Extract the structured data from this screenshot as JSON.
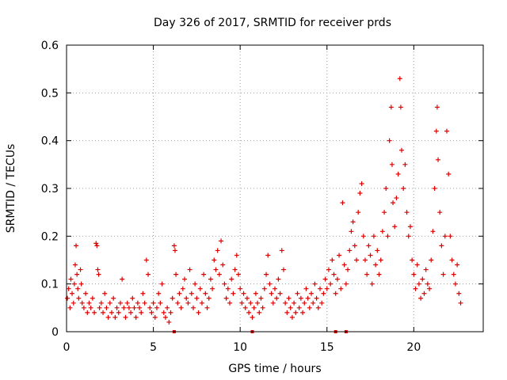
{
  "chart_data": {
    "type": "scatter",
    "title": "Day 326 of 2017, SRMTID for receiver prds",
    "xlabel": "GPS time / hours",
    "ylabel": "SRMTID / TECUs",
    "xlim": [
      0,
      24
    ],
    "ylim": [
      0,
      0.6
    ],
    "xticks": [
      0,
      5,
      10,
      15,
      20
    ],
    "xtick_labels": [
      "0",
      "5",
      "10",
      "15",
      "20"
    ],
    "yticks": [
      0,
      0.1,
      0.2,
      0.3,
      0.4,
      0.5,
      0.6
    ],
    "ytick_labels": [
      "0",
      "0.1",
      "0.2",
      "0.3",
      "0.4",
      "0.5",
      "0.6"
    ],
    "grid": true,
    "marker": "+",
    "color": "#dd0000",
    "series": [
      {
        "name": "SRMTID",
        "points": [
          [
            0.05,
            0.07
          ],
          [
            0.12,
            0.09
          ],
          [
            0.2,
            0.05
          ],
          [
            0.25,
            0.11
          ],
          [
            0.32,
            0.08
          ],
          [
            0.4,
            0.06
          ],
          [
            0.45,
            0.1
          ],
          [
            0.5,
            0.14
          ],
          [
            0.55,
            0.18
          ],
          [
            0.6,
            0.12
          ],
          [
            0.65,
            0.09
          ],
          [
            0.7,
            0.07
          ],
          [
            0.8,
            0.13
          ],
          [
            0.85,
            0.1
          ],
          [
            0.9,
            0.06
          ],
          [
            1.0,
            0.05
          ],
          [
            1.1,
            0.08
          ],
          [
            1.2,
            0.04
          ],
          [
            1.3,
            0.06
          ],
          [
            1.4,
            0.05
          ],
          [
            1.5,
            0.07
          ],
          [
            1.6,
            0.04
          ],
          [
            1.7,
            0.185
          ],
          [
            1.75,
            0.18
          ],
          [
            1.8,
            0.13
          ],
          [
            1.85,
            0.12
          ],
          [
            1.9,
            0.05
          ],
          [
            2.0,
            0.06
          ],
          [
            2.1,
            0.04
          ],
          [
            2.2,
            0.08
          ],
          [
            2.3,
            0.05
          ],
          [
            2.4,
            0.03
          ],
          [
            2.5,
            0.06
          ],
          [
            2.6,
            0.04
          ],
          [
            2.7,
            0.07
          ],
          [
            2.8,
            0.03
          ],
          [
            2.9,
            0.05
          ],
          [
            3.0,
            0.04
          ],
          [
            3.1,
            0.06
          ],
          [
            3.2,
            0.11
          ],
          [
            3.3,
            0.05
          ],
          [
            3.4,
            0.03
          ],
          [
            3.5,
            0.06
          ],
          [
            3.6,
            0.05
          ],
          [
            3.7,
            0.04
          ],
          [
            3.8,
            0.07
          ],
          [
            3.9,
            0.05
          ],
          [
            4.0,
            0.03
          ],
          [
            4.1,
            0.06
          ],
          [
            4.2,
            0.05
          ],
          [
            4.3,
            0.04
          ],
          [
            4.4,
            0.08
          ],
          [
            4.5,
            0.06
          ],
          [
            4.6,
            0.15
          ],
          [
            4.7,
            0.12
          ],
          [
            4.8,
            0.05
          ],
          [
            4.9,
            0.04
          ],
          [
            5.0,
            0.06
          ],
          [
            5.1,
            0.03
          ],
          [
            5.2,
            0.05
          ],
          [
            5.3,
            0.08
          ],
          [
            5.4,
            0.06
          ],
          [
            5.5,
            0.1
          ],
          [
            5.6,
            0.04
          ],
          [
            5.7,
            0.03
          ],
          [
            5.8,
            0.05
          ],
          [
            5.9,
            0.02
          ],
          [
            6.0,
            0.04
          ],
          [
            6.1,
            0.07
          ],
          [
            6.2,
            0.18
          ],
          [
            6.25,
            0.17
          ],
          [
            6.3,
            0.12
          ],
          [
            6.4,
            0.06
          ],
          [
            6.5,
            0.08
          ],
          [
            6.6,
            0.05
          ],
          [
            6.7,
            0.09
          ],
          [
            6.8,
            0.11
          ],
          [
            6.9,
            0.07
          ],
          [
            7.0,
            0.06
          ],
          [
            7.1,
            0.13
          ],
          [
            7.2,
            0.08
          ],
          [
            7.3,
            0.05
          ],
          [
            7.4,
            0.1
          ],
          [
            7.5,
            0.07
          ],
          [
            7.6,
            0.04
          ],
          [
            7.7,
            0.09
          ],
          [
            7.8,
            0.06
          ],
          [
            7.9,
            0.12
          ],
          [
            8.0,
            0.08
          ],
          [
            8.1,
            0.05
          ],
          [
            8.2,
            0.07
          ],
          [
            8.3,
            0.11
          ],
          [
            8.4,
            0.09
          ],
          [
            8.5,
            0.15
          ],
          [
            8.6,
            0.13
          ],
          [
            8.7,
            0.17
          ],
          [
            8.8,
            0.12
          ],
          [
            8.9,
            0.19
          ],
          [
            9.0,
            0.14
          ],
          [
            9.1,
            0.1
          ],
          [
            9.2,
            0.07
          ],
          [
            9.3,
            0.09
          ],
          [
            9.4,
            0.06
          ],
          [
            9.5,
            0.11
          ],
          [
            9.6,
            0.08
          ],
          [
            9.7,
            0.13
          ],
          [
            9.8,
            0.16
          ],
          [
            9.9,
            0.12
          ],
          [
            10.0,
            0.09
          ],
          [
            10.1,
            0.06
          ],
          [
            10.2,
            0.08
          ],
          [
            10.3,
            0.05
          ],
          [
            10.4,
            0.07
          ],
          [
            10.5,
            0.04
          ],
          [
            10.6,
            0.06
          ],
          [
            10.7,
            0.03
          ],
          [
            10.8,
            0.05
          ],
          [
            10.9,
            0.08
          ],
          [
            11.0,
            0.06
          ],
          [
            11.1,
            0.04
          ],
          [
            11.2,
            0.07
          ],
          [
            11.3,
            0.05
          ],
          [
            11.4,
            0.09
          ],
          [
            11.5,
            0.12
          ],
          [
            11.6,
            0.16
          ],
          [
            11.7,
            0.1
          ],
          [
            11.8,
            0.08
          ],
          [
            11.9,
            0.06
          ],
          [
            12.0,
            0.09
          ],
          [
            12.1,
            0.07
          ],
          [
            12.2,
            0.11
          ],
          [
            12.3,
            0.08
          ],
          [
            12.4,
            0.17
          ],
          [
            12.5,
            0.13
          ],
          [
            12.6,
            0.06
          ],
          [
            12.7,
            0.04
          ],
          [
            12.8,
            0.07
          ],
          [
            12.9,
            0.05
          ],
          [
            13.0,
            0.03
          ],
          [
            13.1,
            0.06
          ],
          [
            13.2,
            0.04
          ],
          [
            13.3,
            0.08
          ],
          [
            13.4,
            0.05
          ],
          [
            13.5,
            0.07
          ],
          [
            13.6,
            0.04
          ],
          [
            13.7,
            0.06
          ],
          [
            13.8,
            0.09
          ],
          [
            13.9,
            0.07
          ],
          [
            14.0,
            0.05
          ],
          [
            14.1,
            0.08
          ],
          [
            14.2,
            0.06
          ],
          [
            14.3,
            0.1
          ],
          [
            14.4,
            0.07
          ],
          [
            14.5,
            0.05
          ],
          [
            14.6,
            0.09
          ],
          [
            14.7,
            0.06
          ],
          [
            14.8,
            0.08
          ],
          [
            14.9,
            0.11
          ],
          [
            15.0,
            0.09
          ],
          [
            15.1,
            0.13
          ],
          [
            15.2,
            0.1
          ],
          [
            15.3,
            0.15
          ],
          [
            15.4,
            0.12
          ],
          [
            15.5,
            0.08
          ],
          [
            15.6,
            0.11
          ],
          [
            15.7,
            0.16
          ],
          [
            15.8,
            0.09
          ],
          [
            15.9,
            0.27
          ],
          [
            16.0,
            0.14
          ],
          [
            16.1,
            0.1
          ],
          [
            16.2,
            0.13
          ],
          [
            16.3,
            0.17
          ],
          [
            16.4,
            0.21
          ],
          [
            16.5,
            0.23
          ],
          [
            16.6,
            0.18
          ],
          [
            16.7,
            0.15
          ],
          [
            16.8,
            0.25
          ],
          [
            16.9,
            0.29
          ],
          [
            17.0,
            0.31
          ],
          [
            17.1,
            0.2
          ],
          [
            17.2,
            0.15
          ],
          [
            17.3,
            0.12
          ],
          [
            17.4,
            0.18
          ],
          [
            17.5,
            0.16
          ],
          [
            17.6,
            0.1
          ],
          [
            17.7,
            0.2
          ],
          [
            17.8,
            0.14
          ],
          [
            17.9,
            0.17
          ],
          [
            18.0,
            0.12
          ],
          [
            18.1,
            0.15
          ],
          [
            18.2,
            0.21
          ],
          [
            18.3,
            0.25
          ],
          [
            18.4,
            0.3
          ],
          [
            18.5,
            0.2
          ],
          [
            18.6,
            0.4
          ],
          [
            18.7,
            0.47
          ],
          [
            18.75,
            0.35
          ],
          [
            18.8,
            0.27
          ],
          [
            18.9,
            0.22
          ],
          [
            19.0,
            0.28
          ],
          [
            19.1,
            0.33
          ],
          [
            19.2,
            0.53
          ],
          [
            19.25,
            0.47
          ],
          [
            19.3,
            0.38
          ],
          [
            19.4,
            0.3
          ],
          [
            19.5,
            0.35
          ],
          [
            19.6,
            0.25
          ],
          [
            19.7,
            0.2
          ],
          [
            19.8,
            0.22
          ],
          [
            19.9,
            0.15
          ],
          [
            20.0,
            0.12
          ],
          [
            20.1,
            0.09
          ],
          [
            20.2,
            0.14
          ],
          [
            20.3,
            0.1
          ],
          [
            20.4,
            0.07
          ],
          [
            20.5,
            0.11
          ],
          [
            20.6,
            0.08
          ],
          [
            20.7,
            0.13
          ],
          [
            20.8,
            0.1
          ],
          [
            20.9,
            0.09
          ],
          [
            21.0,
            0.15
          ],
          [
            21.1,
            0.21
          ],
          [
            21.2,
            0.3
          ],
          [
            21.3,
            0.42
          ],
          [
            21.35,
            0.47
          ],
          [
            21.4,
            0.36
          ],
          [
            21.5,
            0.25
          ],
          [
            21.6,
            0.18
          ],
          [
            21.7,
            0.12
          ],
          [
            21.8,
            0.2
          ],
          [
            21.9,
            0.42
          ],
          [
            22.0,
            0.33
          ],
          [
            22.1,
            0.2
          ],
          [
            22.2,
            0.15
          ],
          [
            22.3,
            0.12
          ],
          [
            22.4,
            0.1
          ],
          [
            22.5,
            0.14
          ],
          [
            22.6,
            0.08
          ],
          [
            22.7,
            0.06
          ]
        ]
      }
    ],
    "axis_marks": [
      6.2,
      10.7,
      15.5,
      16.1
    ]
  }
}
